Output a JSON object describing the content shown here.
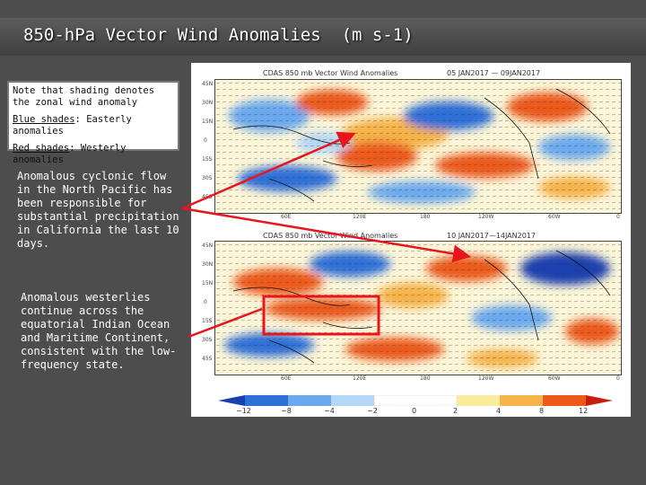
{
  "slide": {
    "title": "850-hPa Vector Wind Anomalies  (m s-1)"
  },
  "note_box": {
    "line1": "Note that shading denotes the zonal wind anomaly",
    "blue_label": "Blue shades",
    "blue_text": ": Easterly anomalies",
    "red_label": "Red shades",
    "red_text": ": Westerly anomalies"
  },
  "captions": {
    "cyclonic": "Anomalous cyclonic flow in the North Pacific has been responsible for substantial precipitation in California the last 10 days.",
    "westerlies": "Anomalous westerlies continue across the equatorial Indian Ocean and Maritime Continent, consistent with the low-frequency state."
  },
  "maps": {
    "top_title_left": "CDAS  850  mb  Vector  Wind  Anomalies",
    "top_title_right": "05 JAN2017 — 09JAN2017",
    "bottom_title_left": "CDAS  850  mb  Vector  Wind  Anomalies",
    "bottom_title_right": "10 JAN2017—14JAN2017",
    "lat_labels": [
      "45N",
      "30N",
      "15N",
      "0",
      "15S",
      "30S",
      "45S"
    ],
    "lon_labels": [
      "60E",
      "120E",
      "180",
      "120W",
      "60W",
      "0"
    ]
  },
  "colorbar": {
    "labels": [
      "−12",
      "−8",
      "−4",
      "−2",
      "0",
      "2",
      "4",
      "8",
      "12"
    ],
    "colors": [
      "#1a3fb0",
      "#2e6fd8",
      "#6aa9ee",
      "#b4d7f5",
      "#ffffff",
      "#f9ec9c",
      "#f6b34a",
      "#ec5a1c",
      "#c81d10"
    ]
  },
  "colors": {
    "background": "#4d4d4d",
    "arrow": "#e8161c",
    "highlight_box": "#e8161c"
  }
}
